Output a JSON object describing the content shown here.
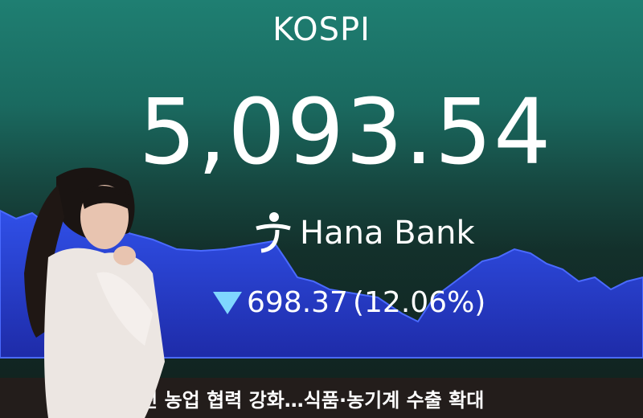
{
  "display": {
    "index_name": "KOSPI",
    "index_value": "5,093.54",
    "bank_name": "Hana Bank",
    "change_direction": "down",
    "change_value": "698.37",
    "change_percent": "(12.06%)",
    "down_color": "#7fd6ff",
    "chart_color": "#2a3fd6"
  },
  "ticker": {
    "headline": "필리핀 농업 협력 강화…식품·농기계 수출 확대"
  }
}
